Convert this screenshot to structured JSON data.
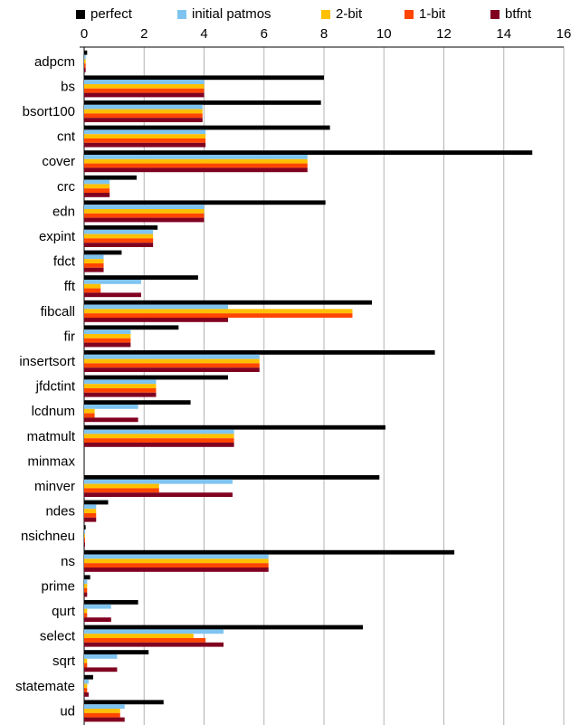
{
  "chart_data": {
    "type": "bar",
    "orientation": "horizontal",
    "title": "",
    "xlabel": "",
    "ylabel": "",
    "xlim": [
      0,
      16
    ],
    "xticks": [
      0,
      2,
      4,
      6,
      8,
      10,
      12,
      14,
      16
    ],
    "xtick_labels": [
      "0",
      "2",
      "4",
      "6",
      "8",
      "10",
      "12",
      "14",
      "16"
    ],
    "x_axis_position": "top",
    "grid": true,
    "legend_position": "top",
    "categories": [
      "adpcm",
      "bs",
      "bsort100",
      "cnt",
      "cover",
      "crc",
      "edn",
      "expint",
      "fdct",
      "fft",
      "fibcall",
      "fir",
      "insertsort",
      "jfdctint",
      "lcdnum",
      "matmult",
      "minmax",
      "minver",
      "ndes",
      "nsichneu",
      "ns",
      "prime",
      "qurt",
      "select",
      "sqrt",
      "statemate",
      "ud"
    ],
    "series": [
      {
        "name": "perfect",
        "color": "#000000",
        "values": [
          0.1,
          8.0,
          7.9,
          8.2,
          14.95,
          1.75,
          8.05,
          2.45,
          1.25,
          3.8,
          9.6,
          3.15,
          11.7,
          4.8,
          3.55,
          10.05,
          0.0,
          9.85,
          0.8,
          0.05,
          12.35,
          0.2,
          1.8,
          9.3,
          2.15,
          0.3,
          2.65
        ]
      },
      {
        "name": "initial patmos",
        "color": "#7fc4f0",
        "values": [
          0.05,
          4.0,
          3.95,
          4.05,
          7.45,
          0.85,
          4.0,
          2.3,
          0.65,
          1.9,
          4.8,
          1.55,
          5.85,
          2.4,
          1.8,
          5.0,
          0.0,
          4.95,
          0.4,
          0.03,
          6.15,
          0.1,
          0.9,
          4.65,
          1.1,
          0.15,
          1.35
        ]
      },
      {
        "name": "2-bit",
        "color": "#ffc000",
        "values": [
          0.05,
          4.0,
          3.95,
          4.05,
          7.45,
          0.85,
          4.0,
          2.3,
          0.65,
          0.55,
          8.95,
          1.55,
          5.85,
          2.4,
          0.35,
          5.0,
          0.0,
          2.5,
          0.4,
          0.03,
          6.15,
          0.1,
          0.1,
          3.65,
          0.1,
          0.1,
          1.2
        ]
      },
      {
        "name": "1-bit",
        "color": "#ff4500",
        "values": [
          0.05,
          4.0,
          3.95,
          4.05,
          7.45,
          0.85,
          4.0,
          2.3,
          0.65,
          0.55,
          8.95,
          1.55,
          5.85,
          2.4,
          0.35,
          5.0,
          0.0,
          2.5,
          0.4,
          0.03,
          6.15,
          0.1,
          0.1,
          4.05,
          0.1,
          0.1,
          1.2
        ]
      },
      {
        "name": "btfnt",
        "color": "#800020",
        "values": [
          0.05,
          4.0,
          3.95,
          4.05,
          7.45,
          0.85,
          4.0,
          2.3,
          0.65,
          1.9,
          4.8,
          1.55,
          5.85,
          2.4,
          1.8,
          5.0,
          0.0,
          4.95,
          0.4,
          0.03,
          6.15,
          0.1,
          0.9,
          4.65,
          1.1,
          0.15,
          1.35
        ]
      }
    ]
  }
}
